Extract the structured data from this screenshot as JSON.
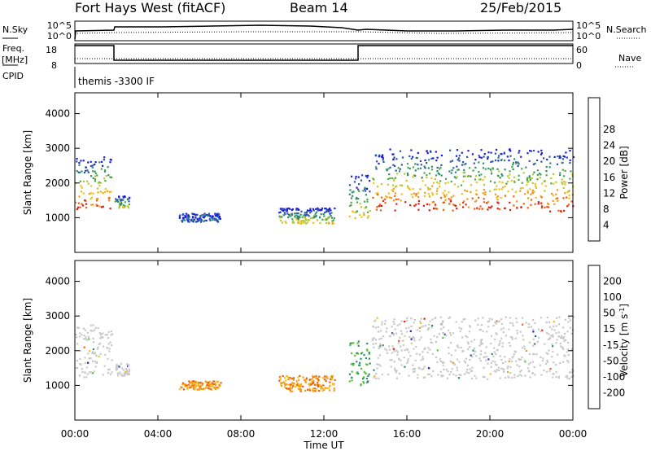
{
  "header": {
    "station": "Fort Hays West (fitACF)",
    "beam": "Beam 14",
    "date": "25/Feb/2015"
  },
  "strip": {
    "nsky_label": "N.Sky",
    "nsky_ticks": [
      "10^5",
      "10^0"
    ],
    "freq_label": "Freq.",
    "freq_unit": "[MHz]",
    "freq_ticks": [
      "18",
      "8"
    ],
    "cpid_label": "CPID",
    "cpid_value": "themis -3300 IF",
    "nsearch_label": "N.Search",
    "nsearch_ticks": [
      "10^5",
      "10^0"
    ],
    "nave_label": "Nave",
    "nave_ticks": [
      "60",
      "0"
    ]
  },
  "power_colorbar": {
    "label": "Power [dB]",
    "ticks": [
      "4",
      "8",
      "12",
      "16",
      "20",
      "24",
      "28"
    ],
    "colors": [
      "#1a1adc",
      "#2a53b0",
      "#2f8c6e",
      "#4aa84a",
      "#b8c832",
      "#f2c01c",
      "#f39a18",
      "#ef5d10",
      "#e01a10"
    ]
  },
  "velocity_colorbar": {
    "label_main": "Velocity [m s",
    "label_sup": "-1",
    "label_end": "]",
    "ticks": [
      "200",
      "100",
      "50",
      "15",
      "-15",
      "-50",
      "-100",
      "-200"
    ],
    "colors": [
      "#1a1adc",
      "#2a53b0",
      "#2f8c6e",
      "#59c23c",
      "#c8c8c8",
      "#f2c01c",
      "#f39a18",
      "#ef5d10",
      "#e01a10"
    ]
  },
  "chart_data": [
    {
      "type": "heatmap",
      "name": "power-panel",
      "ylabel": "Slant Range [km]",
      "ylim": [
        0,
        4600
      ],
      "yticks": [
        1000,
        2000,
        3000,
        4000
      ],
      "xlim": [
        0,
        24
      ],
      "xticks": [
        "00:00",
        "04:00",
        "08:00",
        "12:00",
        "16:00",
        "20:00",
        "00:00"
      ],
      "regions": [
        {
          "t0": 0.0,
          "t1": 1.8,
          "r0": 1250,
          "r1": 2800,
          "level": "high"
        },
        {
          "t0": 1.9,
          "t1": 2.6,
          "r0": 1300,
          "r1": 1650,
          "level": "mid"
        },
        {
          "t0": 5.0,
          "t1": 7.0,
          "r0": 900,
          "r1": 1150,
          "level": "low"
        },
        {
          "t0": 9.8,
          "t1": 12.5,
          "r0": 850,
          "r1": 1300,
          "level": "mid"
        },
        {
          "t0": 13.2,
          "t1": 14.2,
          "r0": 1000,
          "r1": 2300,
          "level": "mid"
        },
        {
          "t0": 14.3,
          "t1": 24.0,
          "r0": 1200,
          "r1": 3000,
          "level": "high"
        }
      ]
    },
    {
      "type": "heatmap",
      "name": "velocity-panel",
      "ylabel": "Slant Range [km]",
      "xlabel": "Time UT",
      "ylim": [
        0,
        4600
      ],
      "yticks": [
        1000,
        2000,
        3000,
        4000
      ],
      "xlim": [
        0,
        24
      ],
      "xticks": [
        "00:00",
        "04:00",
        "08:00",
        "12:00",
        "16:00",
        "20:00",
        "00:00"
      ],
      "regions": [
        {
          "t0": 0.0,
          "t1": 1.8,
          "r0": 1250,
          "r1": 2800,
          "level": "ground"
        },
        {
          "t0": 1.9,
          "t1": 2.6,
          "r0": 1300,
          "r1": 1650,
          "level": "ground"
        },
        {
          "t0": 5.0,
          "t1": 7.0,
          "r0": 900,
          "r1": 1150,
          "level": "neg"
        },
        {
          "t0": 9.8,
          "t1": 12.5,
          "r0": 850,
          "r1": 1300,
          "level": "neg"
        },
        {
          "t0": 13.2,
          "t1": 14.2,
          "r0": 1000,
          "r1": 2300,
          "level": "pos"
        },
        {
          "t0": 14.3,
          "t1": 24.0,
          "r0": 1200,
          "r1": 3000,
          "level": "ground"
        }
      ]
    }
  ]
}
